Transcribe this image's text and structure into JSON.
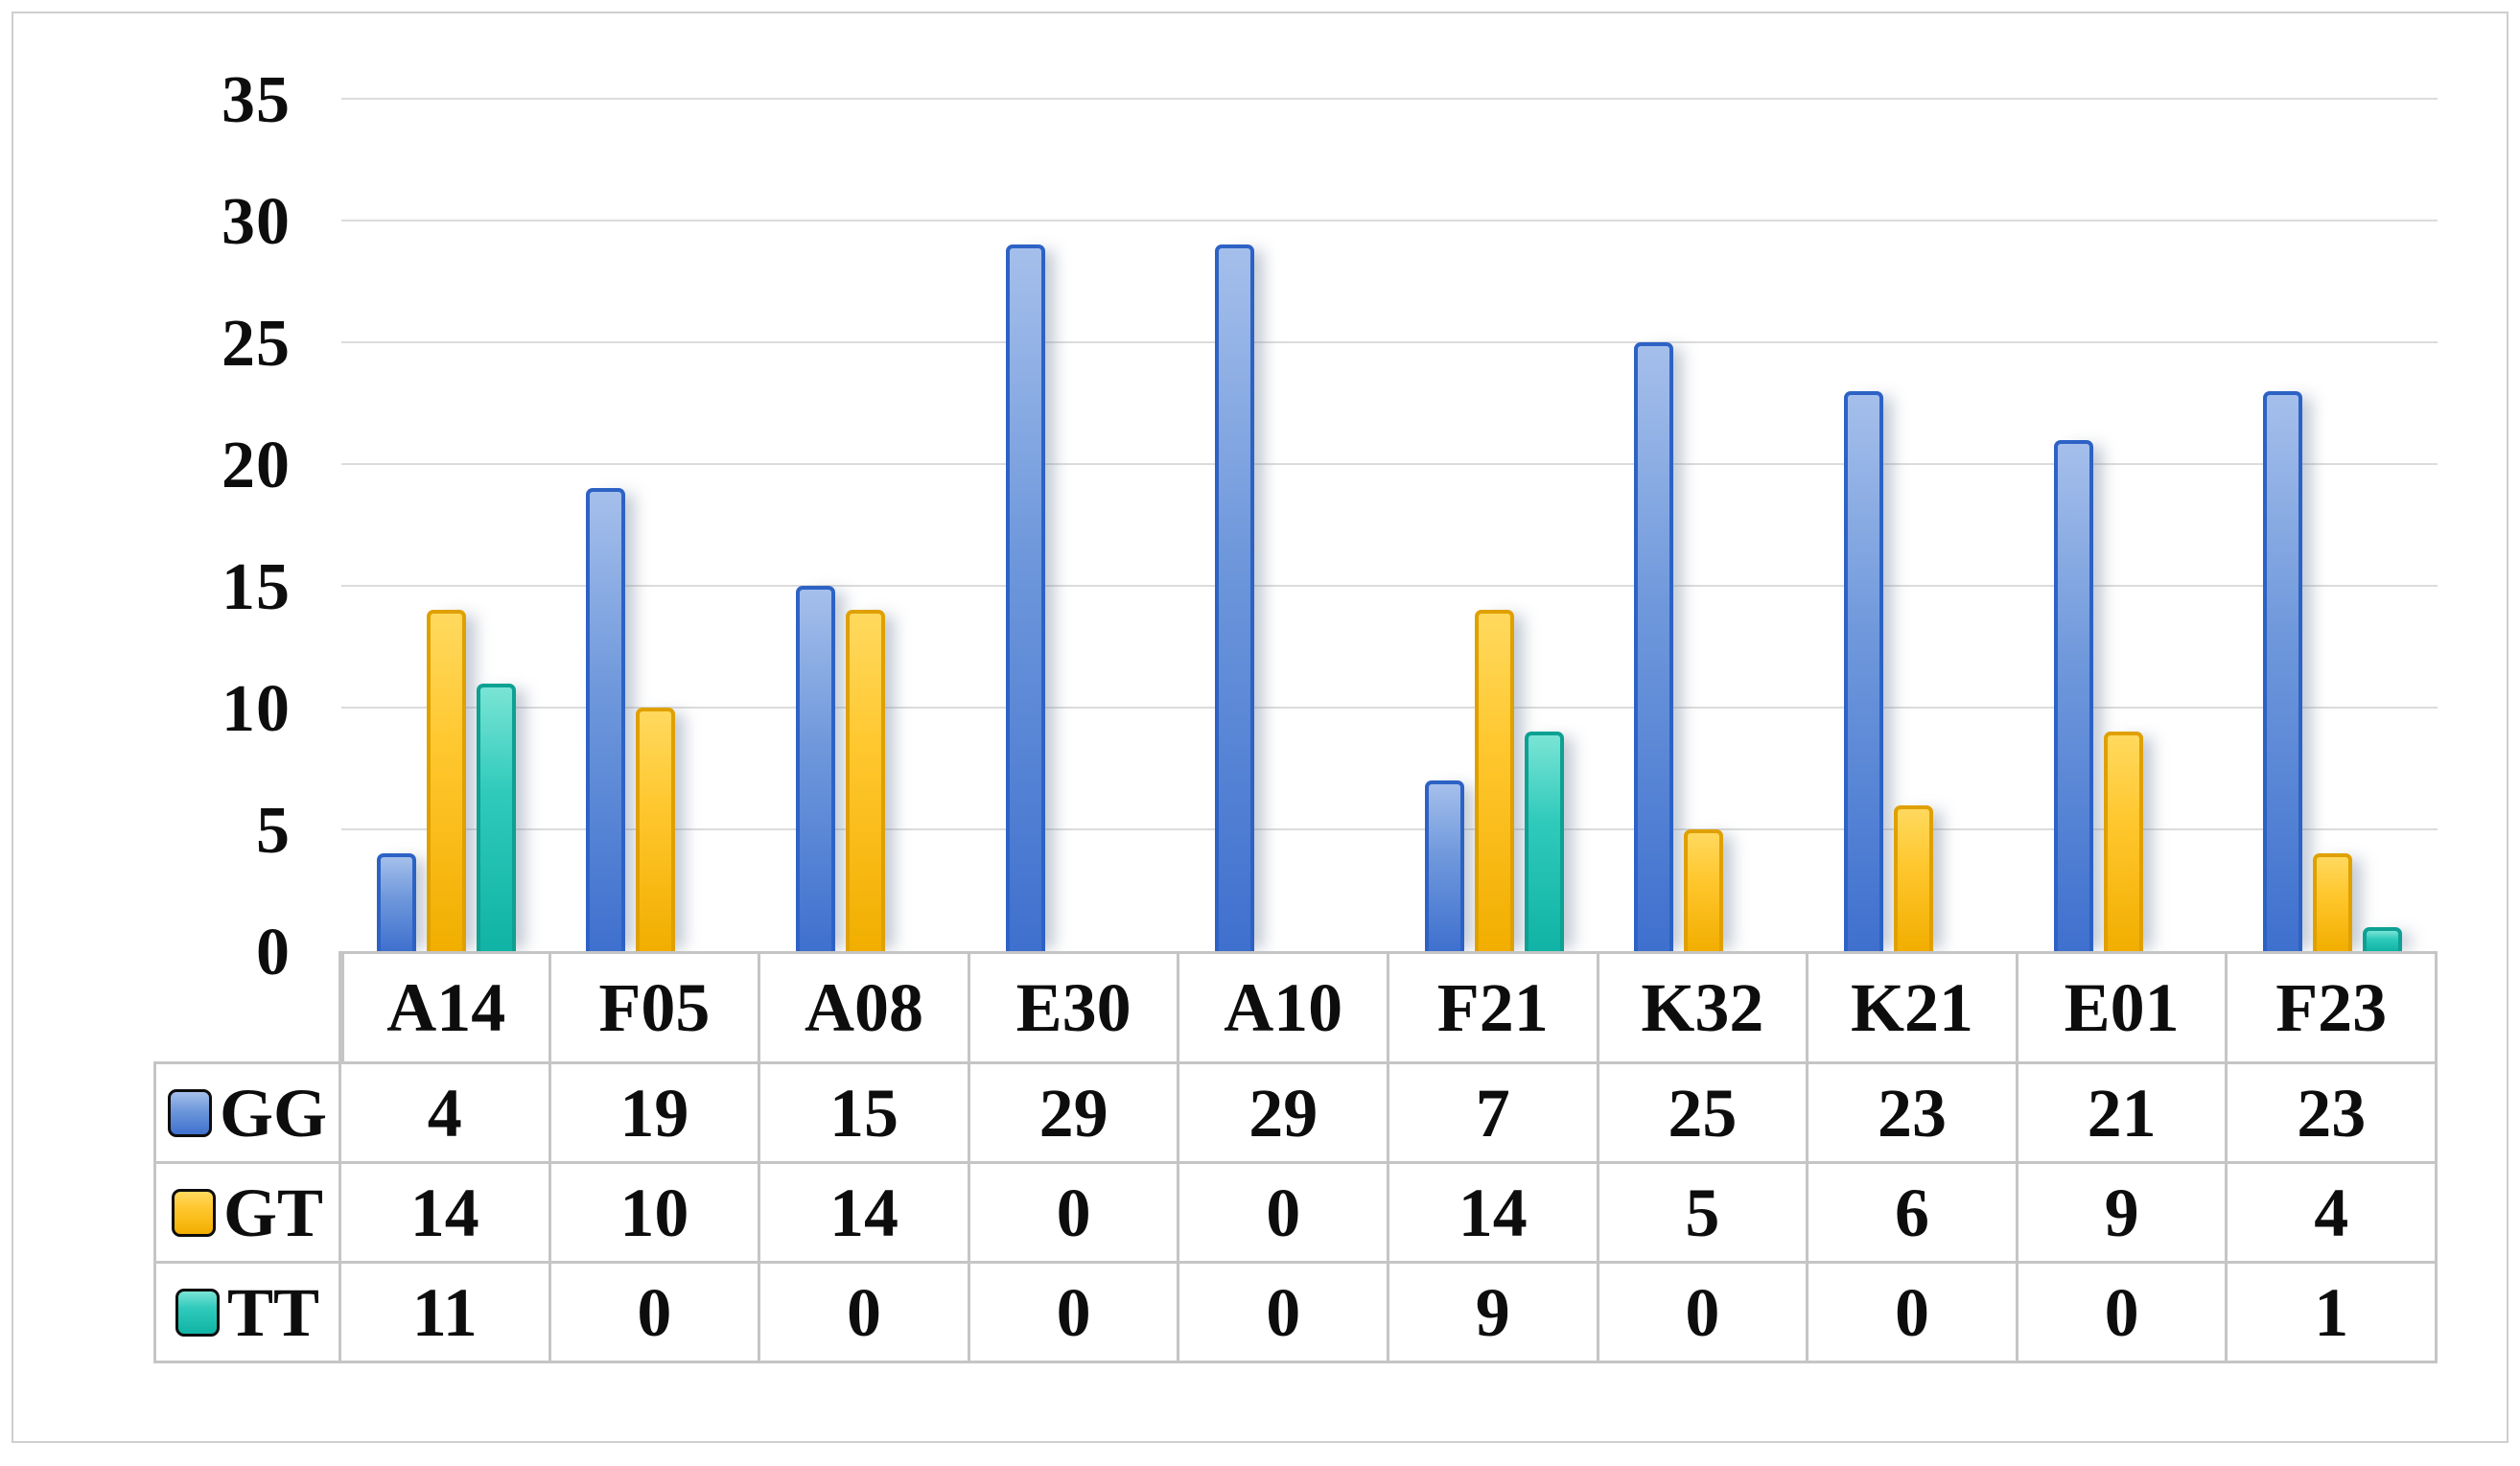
{
  "figure": {
    "background": "#ffffff",
    "frame_border_color": "#cfcfcf",
    "text_color": "#0d0d0d"
  },
  "chart_data": {
    "type": "bar",
    "title": "",
    "xlabel": "",
    "ylabel": "",
    "categories": [
      "A14",
      "F05",
      "A08",
      "E30",
      "A10",
      "F21",
      "K32",
      "K21",
      "E01",
      "F23"
    ],
    "series": [
      {
        "name": "GG",
        "values": [
          4,
          19,
          15,
          29,
          29,
          7,
          25,
          23,
          21,
          23
        ],
        "color": "#3f70ce"
      },
      {
        "name": "GT",
        "values": [
          14,
          10,
          14,
          0,
          0,
          14,
          5,
          6,
          9,
          4
        ],
        "color": "#ffc72e"
      },
      {
        "name": "TT",
        "values": [
          11,
          0,
          0,
          0,
          0,
          9,
          0,
          0,
          0,
          1
        ],
        "color": "#2fcabb"
      }
    ],
    "ylim": [
      0,
      35
    ],
    "yticks": [
      "0",
      "5",
      "10",
      "15",
      "20",
      "25",
      "30",
      "35"
    ],
    "grid": "horizontal",
    "gridline_color": "#dcdcdc",
    "table_border_color": "#c5c5c5",
    "legend_position": "data-table-left"
  }
}
